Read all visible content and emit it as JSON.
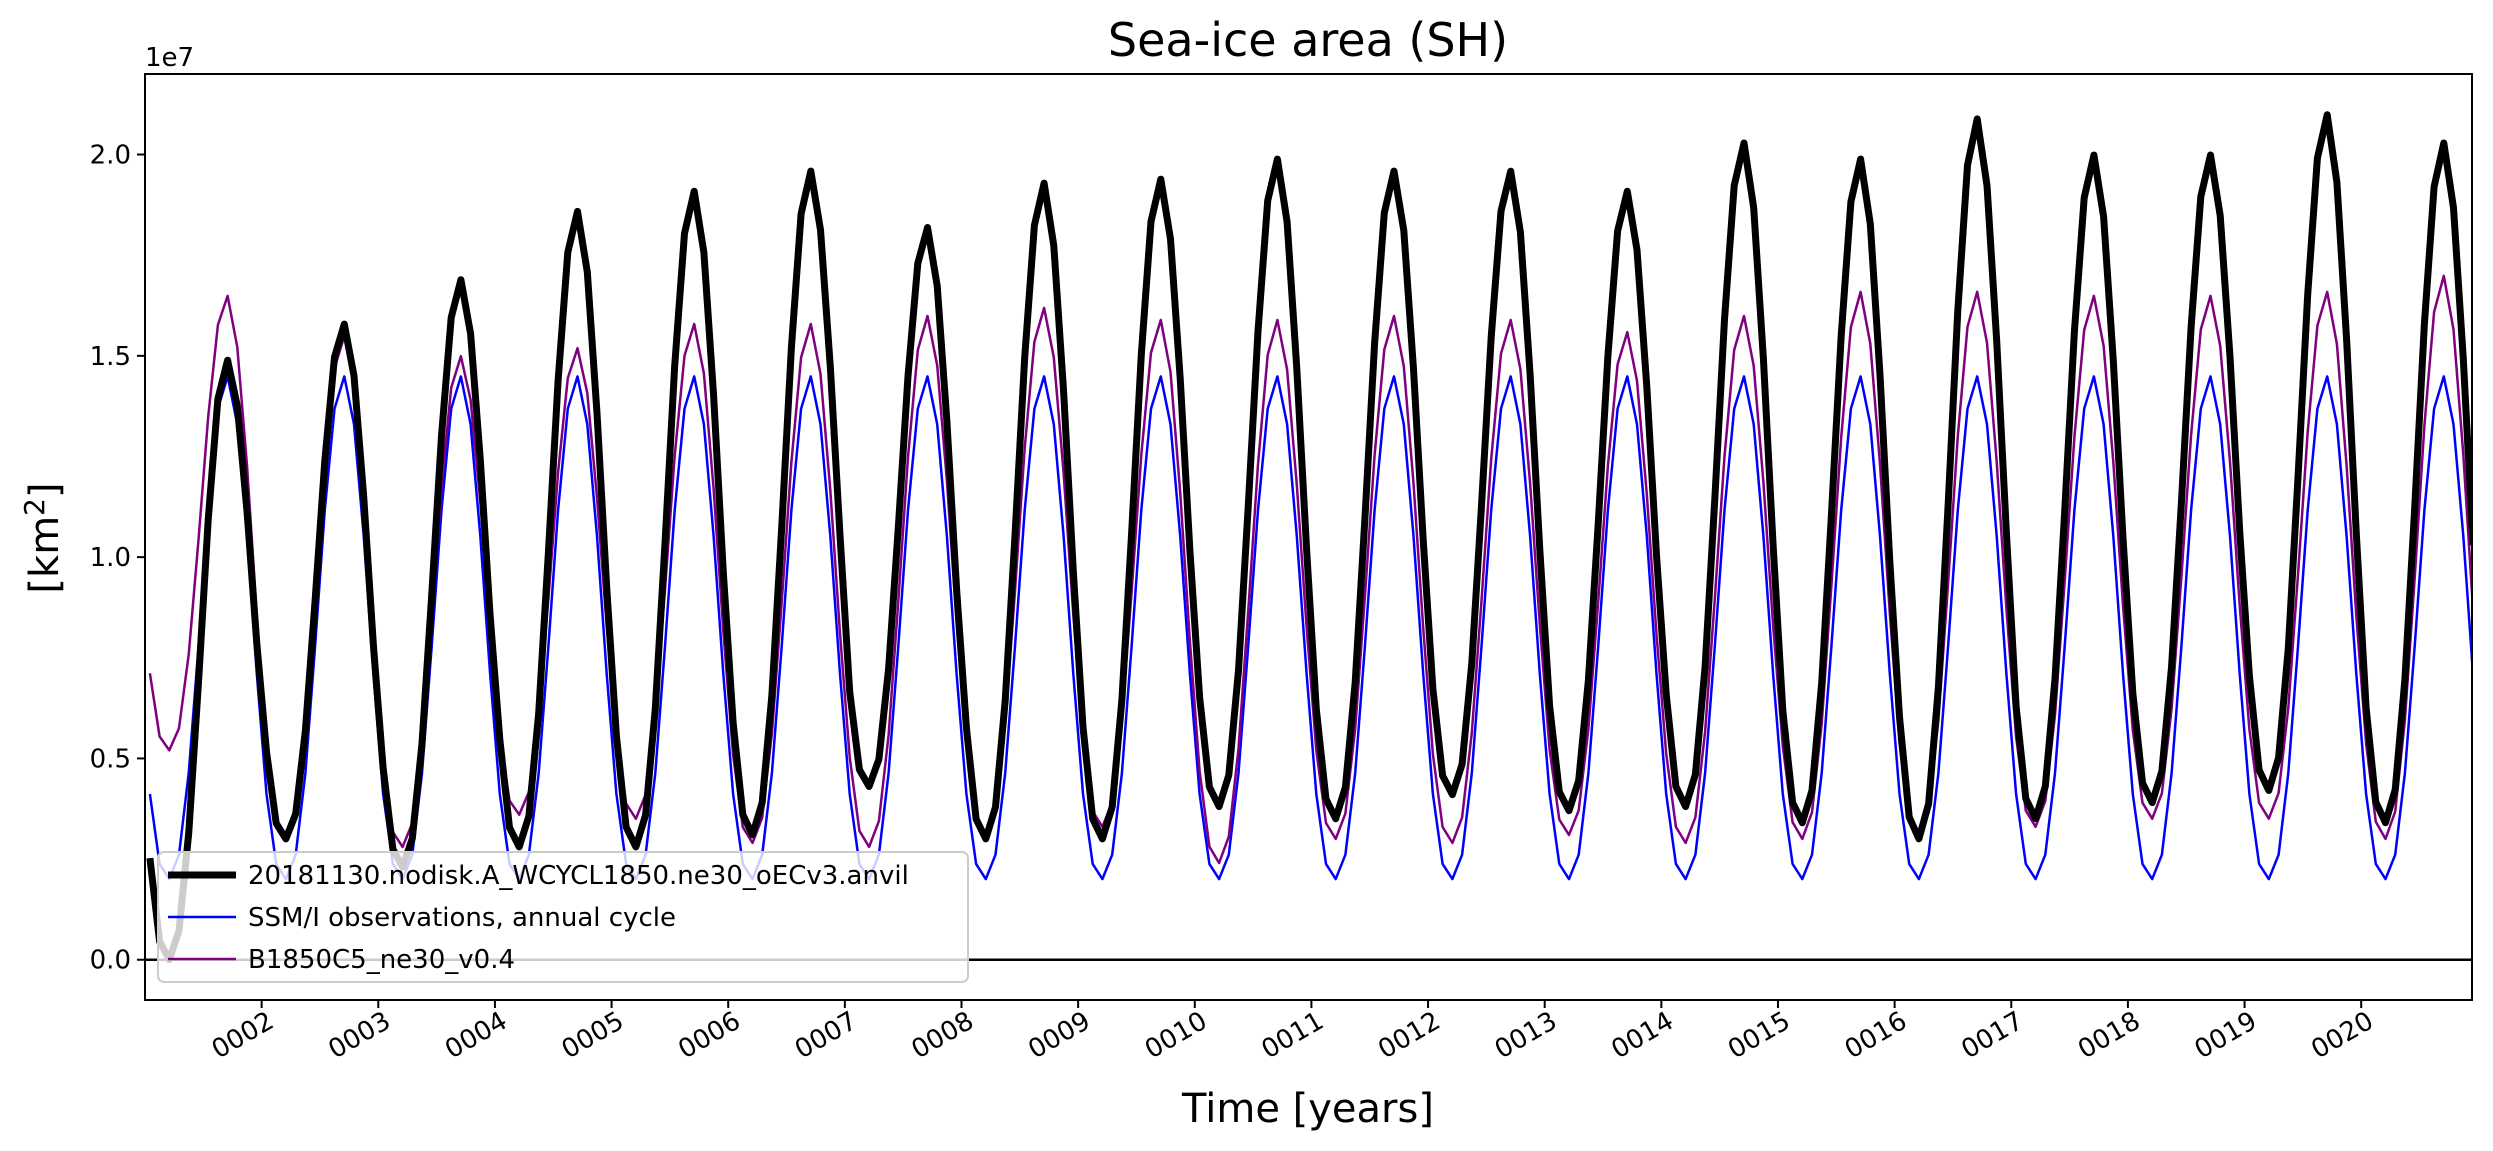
{
  "chart_data": {
    "type": "line",
    "title": "Sea-ice area (SH)",
    "xlabel": "Time [years]",
    "ylabel_base": "[km",
    "ylabel_sup": "2",
    "ylabel_close": "]",
    "y_offset_label": "1e7",
    "xlim": [
      1.0,
      20.95
    ],
    "ylim": [
      -1000000,
      22000000
    ],
    "x_tick_labels": [
      "0002",
      "0003",
      "0004",
      "0005",
      "0006",
      "0007",
      "0008",
      "0009",
      "0010",
      "0011",
      "0012",
      "0013",
      "0014",
      "0015",
      "0016",
      "0017",
      "0018",
      "0019",
      "0020"
    ],
    "y_tick_labels": [
      "0.0",
      "0.5",
      "1.0",
      "1.5",
      "2.0"
    ],
    "reference_line_y": 0,
    "legend_position": "lower left",
    "colors": {
      "model": "#000000",
      "obs": "#0000ff",
      "ref": "#800080"
    },
    "series": [
      {
        "name": "20181130.nodisk.A_WCYCL1850.ne30_oECv3.anvil",
        "color": "#000000",
        "maxima": [
          14900000,
          15800000,
          16900000,
          18600000,
          19100000,
          19600000,
          18200000,
          19300000,
          19400000,
          19900000,
          19600000,
          19600000,
          19100000,
          20300000,
          19900000,
          20900000,
          20000000,
          20000000,
          21000000,
          20300000
        ],
        "minima": [
          0,
          3000000,
          2300000,
          2800000,
          2800000,
          3100000,
          4300000,
          3000000,
          3000000,
          3800000,
          3500000,
          4100000,
          3700000,
          3800000,
          3400000,
          3000000,
          3500000,
          3900000,
          4200000,
          3400000
        ]
      },
      {
        "name": "SSM/I observations, annual cycle",
        "color": "#0000ff",
        "maxima": [
          14500000,
          14500000,
          14500000,
          14500000,
          14500000,
          14500000,
          14500000,
          14500000,
          14500000,
          14500000,
          14500000,
          14500000,
          14500000,
          14500000,
          14500000,
          14500000,
          14500000,
          14500000,
          14500000,
          14500000
        ],
        "minima": [
          2000000,
          2000000,
          2000000,
          2000000,
          2000000,
          2000000,
          2000000,
          2000000,
          2000000,
          2000000,
          2000000,
          2000000,
          2000000,
          2000000,
          2000000,
          2000000,
          2000000,
          2000000,
          2000000,
          2000000
        ]
      },
      {
        "name": "B1850C5_ne30_v0.4",
        "color": "#800080",
        "maxima": [
          16500000,
          15500000,
          15000000,
          15200000,
          15800000,
          15800000,
          16000000,
          16200000,
          15900000,
          15900000,
          16000000,
          15900000,
          15600000,
          16000000,
          16600000,
          16600000,
          16500000,
          16500000,
          16600000,
          17000000
        ],
        "minima": [
          5200000,
          3100000,
          2800000,
          3600000,
          3500000,
          2900000,
          2800000,
          3100000,
          3300000,
          2400000,
          3000000,
          2900000,
          3100000,
          2900000,
          3000000,
          3100000,
          3300000,
          3500000,
          3500000,
          3000000
        ]
      }
    ]
  }
}
